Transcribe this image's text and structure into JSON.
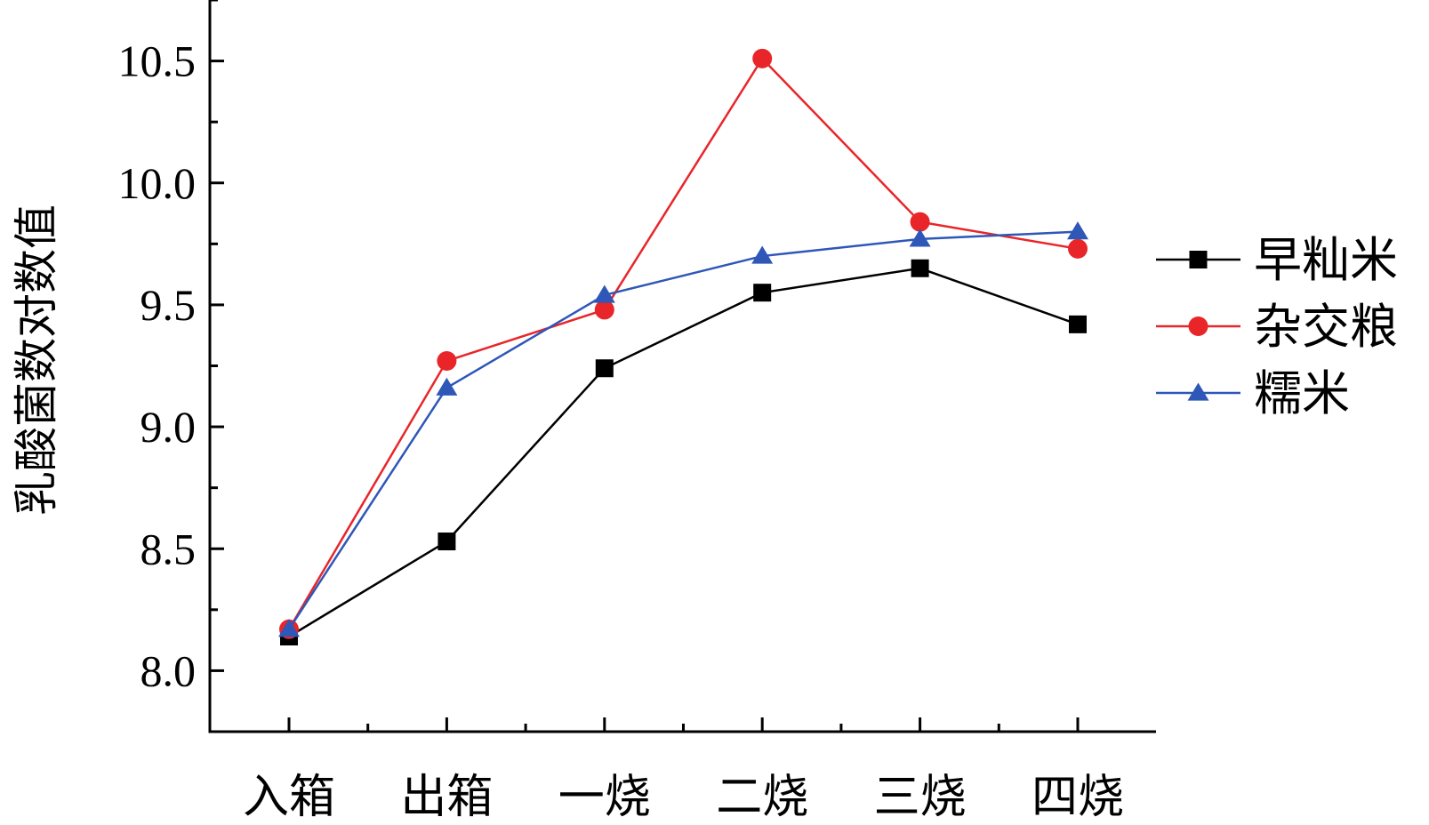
{
  "chart_data": {
    "type": "line",
    "ylabel": "乳酸菌数对数值",
    "xlabel": "",
    "categories": [
      "入箱",
      "出箱",
      "一烧",
      "二烧",
      "三烧",
      "四烧"
    ],
    "ylim": [
      7.75,
      10.75
    ],
    "yticks": [
      8.0,
      8.5,
      9.0,
      9.5,
      10.0,
      10.5
    ],
    "ytick_labels": [
      "8.0",
      "8.5",
      "9.0",
      "9.5",
      "10.0",
      "10.5"
    ],
    "grid": false,
    "legend_position": "right",
    "series": [
      {
        "name": "早籼米",
        "color": "#000000",
        "marker": "square",
        "values": [
          8.14,
          8.53,
          9.24,
          9.55,
          9.65,
          9.42
        ]
      },
      {
        "name": "杂交粮",
        "color": "#e8262a",
        "marker": "circle",
        "values": [
          8.17,
          9.27,
          9.48,
          10.51,
          9.84,
          9.73
        ]
      },
      {
        "name": "糯米",
        "color": "#2f57b8",
        "marker": "triangle",
        "values": [
          8.17,
          9.16,
          9.54,
          9.7,
          9.77,
          9.8
        ]
      }
    ]
  }
}
